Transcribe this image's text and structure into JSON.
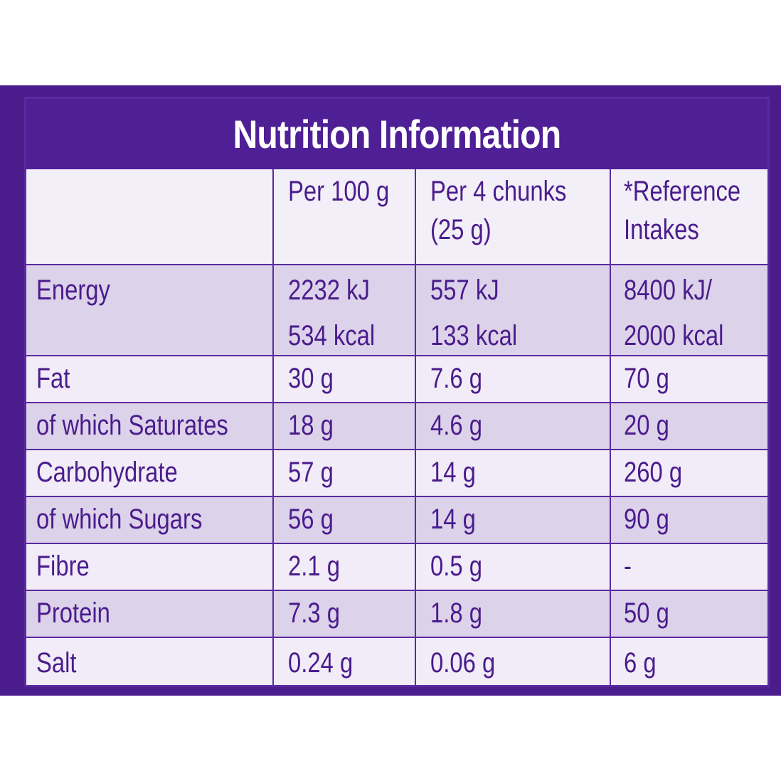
{
  "title": "Nutrition Information",
  "colors": {
    "purple": "#4f1f96",
    "panel_light": "#f1ecf7",
    "panel_shaded": "#dcd2ea",
    "text": "#4a1c8c"
  },
  "columns": {
    "per100_line1": "Per 100 g",
    "per4_line1": "Per 4 chunks",
    "per4_line2": "(25 g)",
    "ref_line1": "*Reference",
    "ref_line2": "Intakes"
  },
  "energy": {
    "label": "Energy",
    "per100_kj": "2232 kJ",
    "per100_kcal": "534 kcal",
    "per4_kj": "557 kJ",
    "per4_kcal": "133 kcal",
    "ref_kj": "8400 kJ/",
    "ref_kcal": "2000 kcal"
  },
  "rows": [
    {
      "label": "Fat",
      "per100": "30 g",
      "per4": "7.6 g",
      "ref": "70 g"
    },
    {
      "label": "of which Saturates",
      "per100": "18 g",
      "per4": "4.6 g",
      "ref": "20 g"
    },
    {
      "label": "Carbohydrate",
      "per100": "57 g",
      "per4": "14 g",
      "ref": "260 g"
    },
    {
      "label": "of which Sugars",
      "per100": "56 g",
      "per4": "14 g",
      "ref": "90 g"
    },
    {
      "label": "Fibre",
      "per100": "2.1 g",
      "per4": "0.5 g",
      "ref": "-"
    },
    {
      "label": "Protein",
      "per100": "7.3 g",
      "per4": "1.8 g",
      "ref": "50 g"
    },
    {
      "label": "Salt",
      "per100": "0.24 g",
      "per4": "0.06 g",
      "ref": "6 g"
    }
  ]
}
